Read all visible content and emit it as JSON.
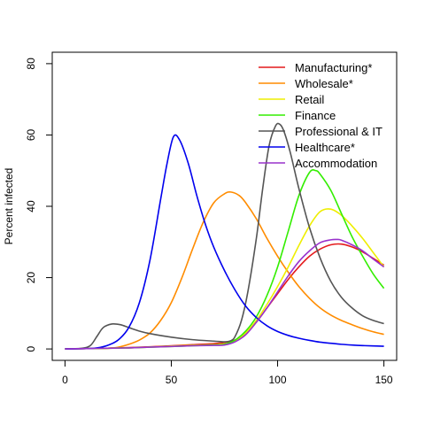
{
  "chart_data": {
    "type": "line",
    "title": "",
    "xlabel": "",
    "ylabel": "Percent infected",
    "xlim": [
      0,
      150
    ],
    "ylim": [
      0,
      80
    ],
    "x_ticks": [
      0,
      50,
      100,
      150
    ],
    "y_ticks": [
      0,
      20,
      40,
      60,
      80
    ],
    "grid": false,
    "legend_position": "top-right",
    "series": [
      {
        "name": "Manufacturing*",
        "color": "#e41a1c",
        "x": [
          0,
          10,
          20,
          30,
          40,
          50,
          60,
          70,
          75,
          80,
          85,
          90,
          95,
          100,
          105,
          110,
          115,
          120,
          125,
          130,
          135,
          140,
          145,
          150
        ],
        "y": [
          0,
          0.1,
          0.2,
          0.4,
          0.6,
          0.9,
          1.2,
          1.5,
          1.8,
          2.5,
          4.5,
          7.5,
          11.5,
          15.5,
          19.5,
          23,
          26,
          28,
          29.2,
          29.4,
          28.6,
          27.2,
          25.4,
          23.5
        ]
      },
      {
        "name": "Wholesale*",
        "color": "#ff8c00",
        "x": [
          0,
          10,
          20,
          25,
          30,
          35,
          40,
          45,
          50,
          55,
          60,
          65,
          70,
          75,
          78,
          82,
          85,
          90,
          95,
          100,
          105,
          110,
          115,
          120,
          125,
          130,
          135,
          140,
          145,
          150
        ],
        "y": [
          0,
          0.1,
          0.2,
          0.5,
          1.3,
          2.5,
          4.5,
          8,
          13,
          20,
          28,
          35.5,
          41,
          43.5,
          44,
          43,
          41,
          36.5,
          31,
          26,
          21.5,
          17.5,
          14.2,
          11.5,
          9.5,
          8,
          6.8,
          5.7,
          4.8,
          4.1
        ]
      },
      {
        "name": "Retail",
        "color": "#eeee00",
        "x": [
          0,
          10,
          20,
          30,
          40,
          50,
          60,
          70,
          75,
          80,
          85,
          90,
          95,
          100,
          105,
          110,
          115,
          120,
          125,
          130,
          135,
          140,
          145,
          150
        ],
        "y": [
          0,
          0.1,
          0.2,
          0.3,
          0.5,
          0.8,
          1.0,
          1.2,
          1.4,
          2.2,
          4.5,
          8,
          12.5,
          17.5,
          23,
          29,
          34.5,
          38.5,
          39.2,
          37.5,
          34.5,
          31,
          27,
          23
        ]
      },
      {
        "name": "Finance",
        "color": "#33ee00",
        "x": [
          0,
          10,
          20,
          30,
          40,
          50,
          60,
          70,
          75,
          80,
          85,
          90,
          95,
          100,
          105,
          110,
          115,
          118,
          120,
          125,
          130,
          135,
          140,
          145,
          150
        ],
        "y": [
          0,
          0.1,
          0.2,
          0.3,
          0.5,
          0.7,
          0.9,
          1.1,
          1.3,
          2.5,
          5,
          9,
          15,
          23,
          33,
          43,
          49.5,
          50,
          49,
          44.5,
          38,
          31.5,
          26,
          21,
          17
        ]
      },
      {
        "name": "Professional & IT",
        "color": "#555555",
        "x": [
          0,
          8,
          12,
          15,
          18,
          22,
          26,
          30,
          35,
          40,
          50,
          60,
          70,
          75,
          78,
          80,
          83,
          86,
          90,
          93,
          96,
          99,
          101,
          103,
          106,
          110,
          115,
          120,
          125,
          130,
          135,
          140,
          145,
          150
        ],
        "y": [
          0,
          0.2,
          1,
          3.5,
          6,
          7,
          6.8,
          6,
          5,
          4.3,
          3.3,
          2.6,
          2.2,
          2,
          2.3,
          3.5,
          8,
          16,
          31,
          45,
          57,
          62.5,
          63,
          61,
          55,
          45,
          34,
          25.5,
          19,
          14.5,
          11.5,
          9.3,
          8,
          7.1
        ]
      },
      {
        "name": "Healthcare*",
        "color": "#0000ee",
        "x": [
          0,
          10,
          15,
          20,
          25,
          30,
          35,
          40,
          45,
          48,
          51,
          54,
          58,
          62,
          66,
          70,
          75,
          80,
          85,
          90,
          95,
          100,
          105,
          110,
          115,
          120,
          125,
          130,
          135,
          140,
          145,
          150
        ],
        "y": [
          0,
          0.1,
          0.3,
          1,
          2.5,
          6,
          13,
          25,
          42,
          52,
          59.5,
          58.5,
          52,
          43,
          35,
          28.5,
          22,
          16.5,
          12,
          8.8,
          6.5,
          4.9,
          3.8,
          3,
          2.4,
          1.9,
          1.6,
          1.3,
          1.1,
          0.95,
          0.85,
          0.75
        ]
      },
      {
        "name": "Accommodation",
        "color": "#9932cc",
        "x": [
          0,
          10,
          20,
          30,
          40,
          50,
          60,
          70,
          75,
          80,
          85,
          90,
          95,
          100,
          105,
          110,
          115,
          120,
          125,
          128,
          130,
          135,
          140,
          145,
          150
        ],
        "y": [
          0,
          0.1,
          0.2,
          0.3,
          0.5,
          0.7,
          0.9,
          1.0,
          1.1,
          2,
          4,
          7.5,
          11.5,
          16,
          20.5,
          24.5,
          27.5,
          29.8,
          30.6,
          30.7,
          30.5,
          29.2,
          27.5,
          25.2,
          23
        ]
      }
    ]
  }
}
